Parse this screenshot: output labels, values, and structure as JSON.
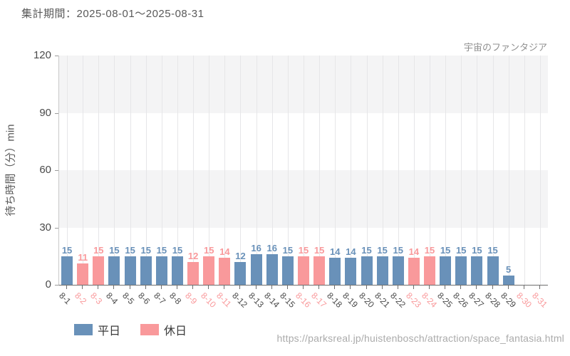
{
  "header": {
    "period": "集計期間：2025-08-01～2025-08-31"
  },
  "chart_data": {
    "type": "bar",
    "title": "宇宙のファンタジア",
    "xlabel": "",
    "ylabel": "待ち時間（分）min",
    "ylim": [
      0,
      120
    ],
    "yticks": [
      0,
      30,
      60,
      90,
      120
    ],
    "grid": "alternating horizontal bands with vertical gridlines per category",
    "legend_position": "bottom-left",
    "legend": [
      {
        "label": "平日",
        "type": "weekday"
      },
      {
        "label": "休日",
        "type": "holiday"
      }
    ],
    "colors": {
      "weekday": "#6991b9",
      "holiday": "#f9999b",
      "weekday_tick_label": "#4a4a4a",
      "holiday_tick_label": "#f9999b",
      "band_gray": "#f4f4f5",
      "band_white": "#ffffff"
    },
    "bars": [
      {
        "label": "8-1",
        "value": 15,
        "type": "weekday"
      },
      {
        "label": "8-2",
        "value": 11,
        "type": "holiday"
      },
      {
        "label": "8-3",
        "value": 15,
        "type": "holiday"
      },
      {
        "label": "8-4",
        "value": 15,
        "type": "weekday"
      },
      {
        "label": "8-5",
        "value": 15,
        "type": "weekday"
      },
      {
        "label": "8-6",
        "value": 15,
        "type": "weekday"
      },
      {
        "label": "8-7",
        "value": 15,
        "type": "weekday"
      },
      {
        "label": "8-8",
        "value": 15,
        "type": "weekday"
      },
      {
        "label": "8-9",
        "value": 12,
        "type": "holiday"
      },
      {
        "label": "8-10",
        "value": 15,
        "type": "holiday"
      },
      {
        "label": "8-11",
        "value": 14,
        "type": "holiday"
      },
      {
        "label": "8-12",
        "value": 12,
        "type": "weekday"
      },
      {
        "label": "8-13",
        "value": 16,
        "type": "weekday"
      },
      {
        "label": "8-14",
        "value": 16,
        "type": "weekday"
      },
      {
        "label": "8-15",
        "value": 15,
        "type": "weekday"
      },
      {
        "label": "8-16",
        "value": 15,
        "type": "holiday"
      },
      {
        "label": "8-17",
        "value": 15,
        "type": "holiday"
      },
      {
        "label": "8-18",
        "value": 14,
        "type": "weekday"
      },
      {
        "label": "8-19",
        "value": 14,
        "type": "weekday"
      },
      {
        "label": "8-20",
        "value": 15,
        "type": "weekday"
      },
      {
        "label": "8-21",
        "value": 15,
        "type": "weekday"
      },
      {
        "label": "8-22",
        "value": 15,
        "type": "weekday"
      },
      {
        "label": "8-23",
        "value": 14,
        "type": "holiday"
      },
      {
        "label": "8-24",
        "value": 15,
        "type": "holiday"
      },
      {
        "label": "8-25",
        "value": 15,
        "type": "weekday"
      },
      {
        "label": "8-26",
        "value": 15,
        "type": "weekday"
      },
      {
        "label": "8-27",
        "value": 15,
        "type": "weekday"
      },
      {
        "label": "8-28",
        "value": 15,
        "type": "weekday"
      },
      {
        "label": "8-29",
        "value": 5,
        "type": "weekday"
      },
      {
        "label": "8-30",
        "value": null,
        "type": "holiday"
      },
      {
        "label": "8-31",
        "value": null,
        "type": "holiday"
      }
    ]
  },
  "footer": {
    "url": "https://parksreal.jp/huistenbosch/attraction/space_fantasia.html"
  }
}
